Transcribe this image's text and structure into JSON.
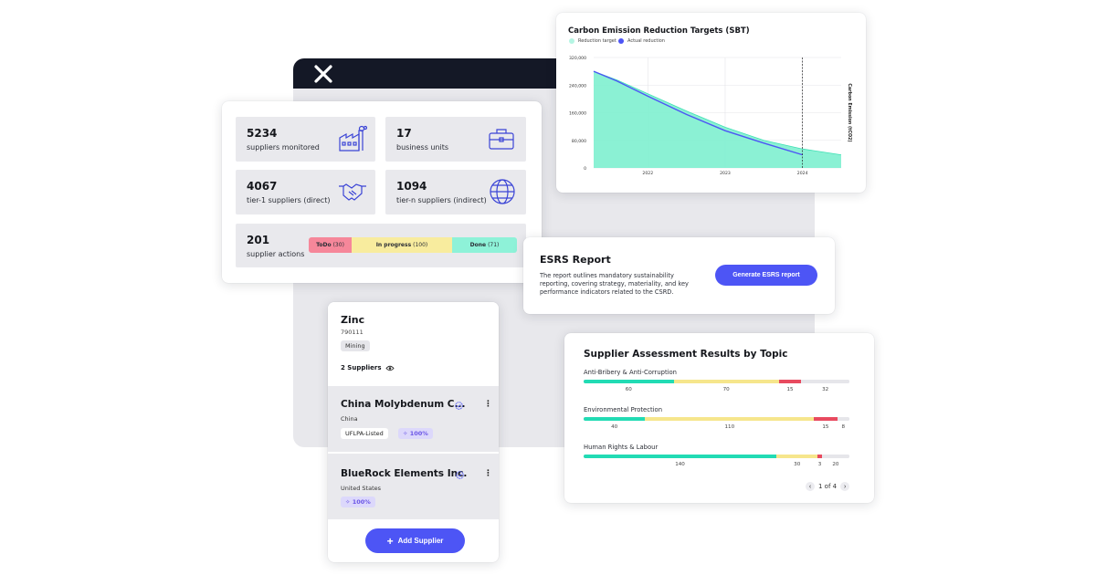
{
  "colors": {
    "accent": "#4d55f5",
    "teal": "#22dbb4",
    "yellow": "#f6e68c",
    "red": "#e84a5f",
    "pink": "#f6879a",
    "mint": "#8ef2d8",
    "dark": "#141826"
  },
  "stats": [
    {
      "value": "5234",
      "label": "suppliers monitored",
      "icon": "factory-icon"
    },
    {
      "value": "17",
      "label": "business units",
      "icon": "briefcase-icon"
    },
    {
      "value": "4067",
      "label": "tier-1 suppliers (direct)",
      "icon": "handshake-icon"
    },
    {
      "value": "1094",
      "label": "tier-n suppliers (indirect)",
      "icon": "globe-icon"
    }
  ],
  "actions": {
    "value": "201",
    "label": "supplier actions",
    "todo": {
      "label": "ToDo",
      "count": "(30)"
    },
    "progress": {
      "label": "In progress",
      "count": "(100)"
    },
    "done": {
      "label": "Done",
      "count": "(71)"
    }
  },
  "chart_data": {
    "type": "area",
    "title": "Carbon Emission Reduction Targets (SBT)",
    "legend": [
      "Reduction target",
      "Actual reduction"
    ],
    "legend_placement": "top-left",
    "ylabel": "Carbon Emission (tCO2)",
    "ylim": [
      0,
      320000
    ],
    "y_ticks": [
      "320,000",
      "240,000",
      "160,000",
      "80,000",
      "0"
    ],
    "x_ticks": [
      "2022",
      "2023",
      "2024"
    ],
    "xlim": [
      2021.3,
      2024.5
    ],
    "grid": true,
    "series": [
      {
        "name": "Reduction target",
        "x": [
          2021.3,
          2021.6,
          2022.0,
          2022.5,
          2023.0,
          2023.5,
          2024.0,
          2024.5
        ],
        "values": [
          280000,
          255000,
          215000,
          165000,
          118000,
          80000,
          55000,
          38000
        ]
      },
      {
        "name": "Actual reduction",
        "x": [
          2021.3,
          2021.6,
          2022.0,
          2022.5,
          2023.0,
          2023.5,
          2024.0
        ],
        "values": [
          280000,
          252000,
          208000,
          155000,
          108000,
          72000,
          38000
        ]
      }
    ],
    "marker_x": 2024.0
  },
  "esrs": {
    "title": "ESRS Report",
    "description": "The report outlines mandatory sustainability reporting, covering strategy, materiality, and key performance indicators related to the CSRD.",
    "button": "Generate ESRS report"
  },
  "assessment": {
    "title": "Supplier Assessment Results by Topic",
    "topics": [
      {
        "name": "Anti-Bribery & Anti-Corruption",
        "values": [
          60,
          70,
          15,
          32
        ]
      },
      {
        "name": "Environmental Protection",
        "values": [
          40,
          110,
          15,
          8
        ]
      },
      {
        "name": "Human Rights & Labour",
        "values": [
          140,
          30,
          3,
          20
        ]
      }
    ],
    "pager": "1 of 4"
  },
  "supplier_panel": {
    "material": "Zinc",
    "code": "790111",
    "category": "Mining",
    "count_label": "2 Suppliers",
    "suppliers": [
      {
        "name": "China Molybdenum C...",
        "country": "China",
        "tag": "UFLPA-Listed",
        "score": "100%"
      },
      {
        "name": "BlueRock Elements Inc.",
        "country": "United States",
        "score": "100%"
      }
    ],
    "add_button": "Add Supplier"
  }
}
